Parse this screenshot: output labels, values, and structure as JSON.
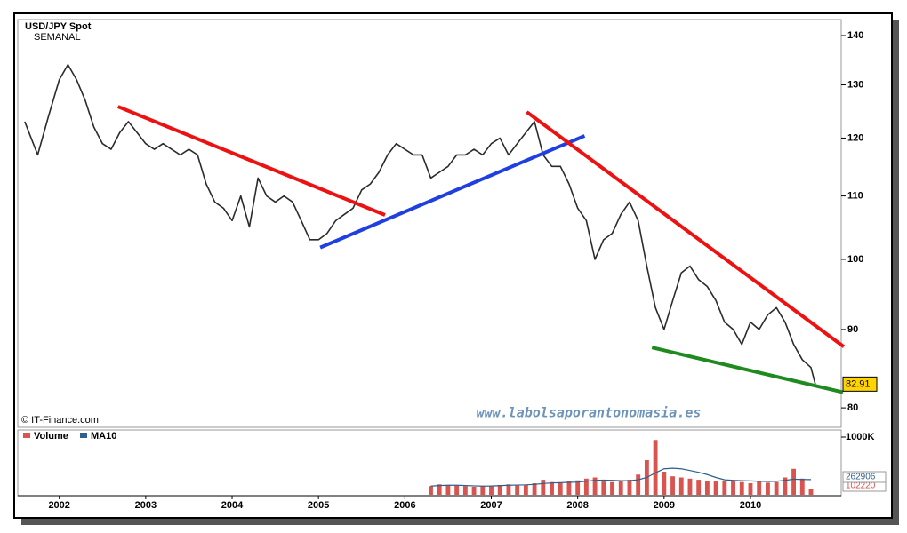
{
  "chart_data": [
    {
      "type": "line",
      "title": "USD/JPY Spot",
      "subtitle": "SEMANAL",
      "source": "© IT-Finance.com",
      "watermark": "www.labolsaporantonomasia.es",
      "color": "#2b2b2b",
      "log": true,
      "xlim": [
        2001.54,
        2011.05
      ],
      "xticks": [
        2002,
        2003,
        2004,
        2005,
        2006,
        2007,
        2008,
        2009,
        2010
      ],
      "ylim": [
        77.8,
        143.4
      ],
      "yticks": [
        80,
        90,
        100,
        110,
        120,
        130,
        140
      ],
      "x": [
        2001.6,
        2001.75,
        2001.875,
        2002.0,
        2002.1,
        2002.2,
        2002.3,
        2002.4,
        2002.5,
        2002.6,
        2002.7,
        2002.8,
        2002.9,
        2003.0,
        2003.1,
        2003.2,
        2003.3,
        2003.4,
        2003.5,
        2003.6,
        2003.7,
        2003.8,
        2003.9,
        2004.0,
        2004.1,
        2004.2,
        2004.3,
        2004.4,
        2004.5,
        2004.6,
        2004.7,
        2004.8,
        2004.9,
        2005.0,
        2005.1,
        2005.2,
        2005.3,
        2005.4,
        2005.5,
        2005.6,
        2005.7,
        2005.8,
        2005.9,
        2006.0,
        2006.1,
        2006.2,
        2006.3,
        2006.4,
        2006.5,
        2006.6,
        2006.7,
        2006.8,
        2006.9,
        2007.0,
        2007.1,
        2007.2,
        2007.3,
        2007.4,
        2007.5,
        2007.6,
        2007.7,
        2007.8,
        2007.9,
        2008.0,
        2008.1,
        2008.2,
        2008.3,
        2008.4,
        2008.5,
        2008.6,
        2008.7,
        2008.8,
        2008.9,
        2009.0,
        2009.1,
        2009.2,
        2009.3,
        2009.4,
        2009.5,
        2009.6,
        2009.7,
        2009.8,
        2009.9,
        2010.0,
        2010.1,
        2010.2,
        2010.3,
        2010.4,
        2010.5,
        2010.6,
        2010.7,
        2010.75
      ],
      "values": [
        123,
        117,
        124,
        131,
        134,
        131,
        127,
        122,
        119,
        118,
        121,
        123,
        121,
        119,
        118,
        119,
        118,
        117,
        118,
        117,
        112,
        109,
        108,
        106,
        110,
        105,
        113,
        110,
        109,
        110,
        109,
        106,
        103,
        103,
        104,
        106,
        107,
        108,
        111,
        112,
        114,
        117,
        119,
        118,
        117,
        117,
        113,
        114,
        115,
        117,
        117,
        118,
        117,
        119,
        120,
        117,
        119,
        121,
        123,
        117,
        115,
        115,
        112,
        108,
        106,
        100,
        103,
        104,
        107,
        109,
        106,
        99,
        93,
        90,
        94,
        98,
        99,
        97,
        96,
        94,
        91,
        90,
        88,
        91,
        90,
        92,
        93,
        91,
        88,
        86,
        85,
        82.91
      ],
      "last_value": 82.91,
      "trendlines": [
        {
          "color": "#ee1111",
          "x": [
            2002.68,
            2005.77
          ],
          "y": [
            125.8,
            106.9
          ]
        },
        {
          "color": "#1f3fe0",
          "x": [
            2005.02,
            2008.08
          ],
          "y": [
            101.8,
            120.4
          ]
        },
        {
          "color": "#ee1111",
          "x": [
            2007.41,
            2011.08
          ],
          "y": [
            124.8,
            87.7
          ]
        },
        {
          "color": "#1f8a1f",
          "x": [
            2008.86,
            2011.07
          ],
          "y": [
            87.6,
            81.9
          ]
        }
      ]
    },
    {
      "type": "bar",
      "xlim": [
        2001.54,
        2011.05
      ],
      "ylim": [
        0,
        1000000
      ],
      "yticks": [
        {
          "value": 1000000,
          "label": "1000K"
        }
      ],
      "x": [
        2006.3,
        2006.4,
        2006.5,
        2006.6,
        2006.7,
        2006.8,
        2006.9,
        2007.0,
        2007.1,
        2007.2,
        2007.3,
        2007.4,
        2007.5,
        2007.6,
        2007.7,
        2007.8,
        2007.9,
        2008.0,
        2008.1,
        2008.2,
        2008.3,
        2008.4,
        2008.5,
        2008.6,
        2008.7,
        2008.8,
        2008.9,
        2009.0,
        2009.1,
        2009.2,
        2009.3,
        2009.4,
        2009.5,
        2009.6,
        2009.7,
        2009.8,
        2009.9,
        2010.0,
        2010.1,
        2010.2,
        2010.3,
        2010.4,
        2010.5,
        2010.6,
        2010.7
      ],
      "series": [
        {
          "name": "Volume",
          "color": "#d9534f",
          "values": [
            150000,
            180000,
            170000,
            160000,
            150000,
            140000,
            150000,
            160000,
            170000,
            180000,
            160000,
            170000,
            200000,
            260000,
            220000,
            200000,
            240000,
            250000,
            280000,
            300000,
            230000,
            220000,
            240000,
            260000,
            350000,
            600000,
            950000,
            400000,
            320000,
            300000,
            280000,
            260000,
            240000,
            230000,
            240000,
            250000,
            220000,
            200000,
            230000,
            210000,
            220000,
            300000,
            450000,
            280000,
            102220
          ]
        },
        {
          "name": "MA10",
          "color": "#2f5f8a",
          "values": [
            150000,
            160000,
            165000,
            165000,
            160000,
            155000,
            150000,
            152000,
            158000,
            165000,
            168000,
            172000,
            180000,
            195000,
            205000,
            210000,
            215000,
            220000,
            235000,
            250000,
            255000,
            250000,
            245000,
            245000,
            260000,
            300000,
            380000,
            450000,
            460000,
            450000,
            420000,
            390000,
            350000,
            300000,
            260000,
            250000,
            245000,
            240000,
            235000,
            230000,
            235000,
            250000,
            270000,
            265000,
            262906
          ]
        }
      ]
    }
  ]
}
